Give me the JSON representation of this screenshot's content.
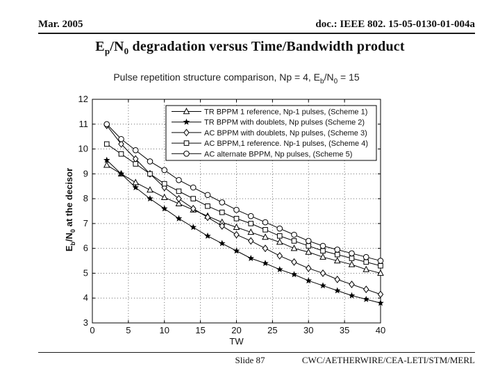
{
  "header": {
    "date": "Mar. 2005",
    "doc": "doc.: IEEE 802. 15-05-0130-01-004a"
  },
  "slide_title": {
    "p1": "E",
    "s1": "p",
    "p2": "/N",
    "s2": "0",
    "p3": " degradation versus Time/Bandwidth product",
    "full": "Ep/N0 degradation versus Time/Bandwidth product"
  },
  "footer": {
    "slide": "Slide 87",
    "orgs": "CWC/AETHERWIRE/CEA-LETI/STM/MERL"
  },
  "colors": {
    "text": "#111111",
    "line": "#000000",
    "grid": "#6e6e6e",
    "background": "#ffffff"
  },
  "chart_data": {
    "type": "line",
    "title": "Pulse repetition structure comparison, Np = 4, Eb/N0 = 15",
    "title_parts": {
      "p1": "Pulse repetition structure comparison, Np = 4, E",
      "s1": "b",
      "p2": "/N",
      "s2": "0",
      "p3": " = 15"
    },
    "xlabel": "TW",
    "ylabel": "Eb/N0 at the decisor",
    "ylabel_parts": {
      "p1": "E",
      "s1": "b",
      "p2": "/N",
      "s2": "0",
      "p3": " at the decisor"
    },
    "xlim": [
      0,
      40
    ],
    "ylim": [
      3,
      12
    ],
    "xticks": [
      0,
      5,
      10,
      15,
      20,
      25,
      30,
      35,
      40
    ],
    "yticks": [
      3,
      4,
      5,
      6,
      7,
      8,
      9,
      10,
      11,
      12
    ],
    "grid": true,
    "legend_position": "top-right",
    "x": [
      2,
      4,
      6,
      8,
      10,
      12,
      14,
      16,
      18,
      20,
      22,
      24,
      26,
      28,
      30,
      32,
      34,
      36,
      38,
      40
    ],
    "series": [
      {
        "name": "TR BPPM 1 reference, Np-1 pulses, (Scheme 1)",
        "marker": "triangle",
        "color": "#000000",
        "values": [
          9.35,
          9.0,
          8.65,
          8.35,
          8.05,
          7.8,
          7.55,
          7.3,
          7.05,
          6.85,
          6.65,
          6.45,
          6.25,
          6.0,
          5.85,
          5.65,
          5.5,
          5.35,
          5.15,
          5.0
        ]
      },
      {
        "name": "TR BPPM with doublets, Np pulses (Scheme 2)",
        "marker": "star",
        "color": "#000000",
        "values": [
          9.55,
          9.0,
          8.45,
          8.0,
          7.6,
          7.2,
          6.85,
          6.5,
          6.2,
          5.9,
          5.6,
          5.4,
          5.15,
          4.95,
          4.7,
          4.5,
          4.3,
          4.1,
          3.95,
          3.8
        ]
      },
      {
        "name": "AC BPPM with doublets, Np pulses, (Scheme 3)",
        "marker": "diamond",
        "color": "#000000",
        "values": [
          10.95,
          10.2,
          9.6,
          9.0,
          8.45,
          8.0,
          7.6,
          7.25,
          6.9,
          6.55,
          6.3,
          6.0,
          5.7,
          5.45,
          5.2,
          5.0,
          4.75,
          4.55,
          4.35,
          4.15
        ]
      },
      {
        "name": "AC BPPM,1 reference. Np-1 pulses, (Scheme 4)",
        "marker": "square",
        "color": "#000000",
        "values": [
          10.2,
          9.8,
          9.4,
          9.0,
          8.6,
          8.3,
          8.0,
          7.7,
          7.45,
          7.2,
          7.0,
          6.75,
          6.5,
          6.3,
          6.1,
          5.9,
          5.75,
          5.6,
          5.45,
          5.3
        ]
      },
      {
        "name": "AC alternate BPPM, Np pulses, (Scheme 5)",
        "marker": "circle",
        "color": "#000000",
        "values": [
          11.0,
          10.4,
          9.95,
          9.5,
          9.15,
          8.75,
          8.45,
          8.15,
          7.85,
          7.55,
          7.3,
          7.05,
          6.8,
          6.55,
          6.3,
          6.1,
          5.95,
          5.8,
          5.65,
          5.5
        ]
      }
    ]
  }
}
